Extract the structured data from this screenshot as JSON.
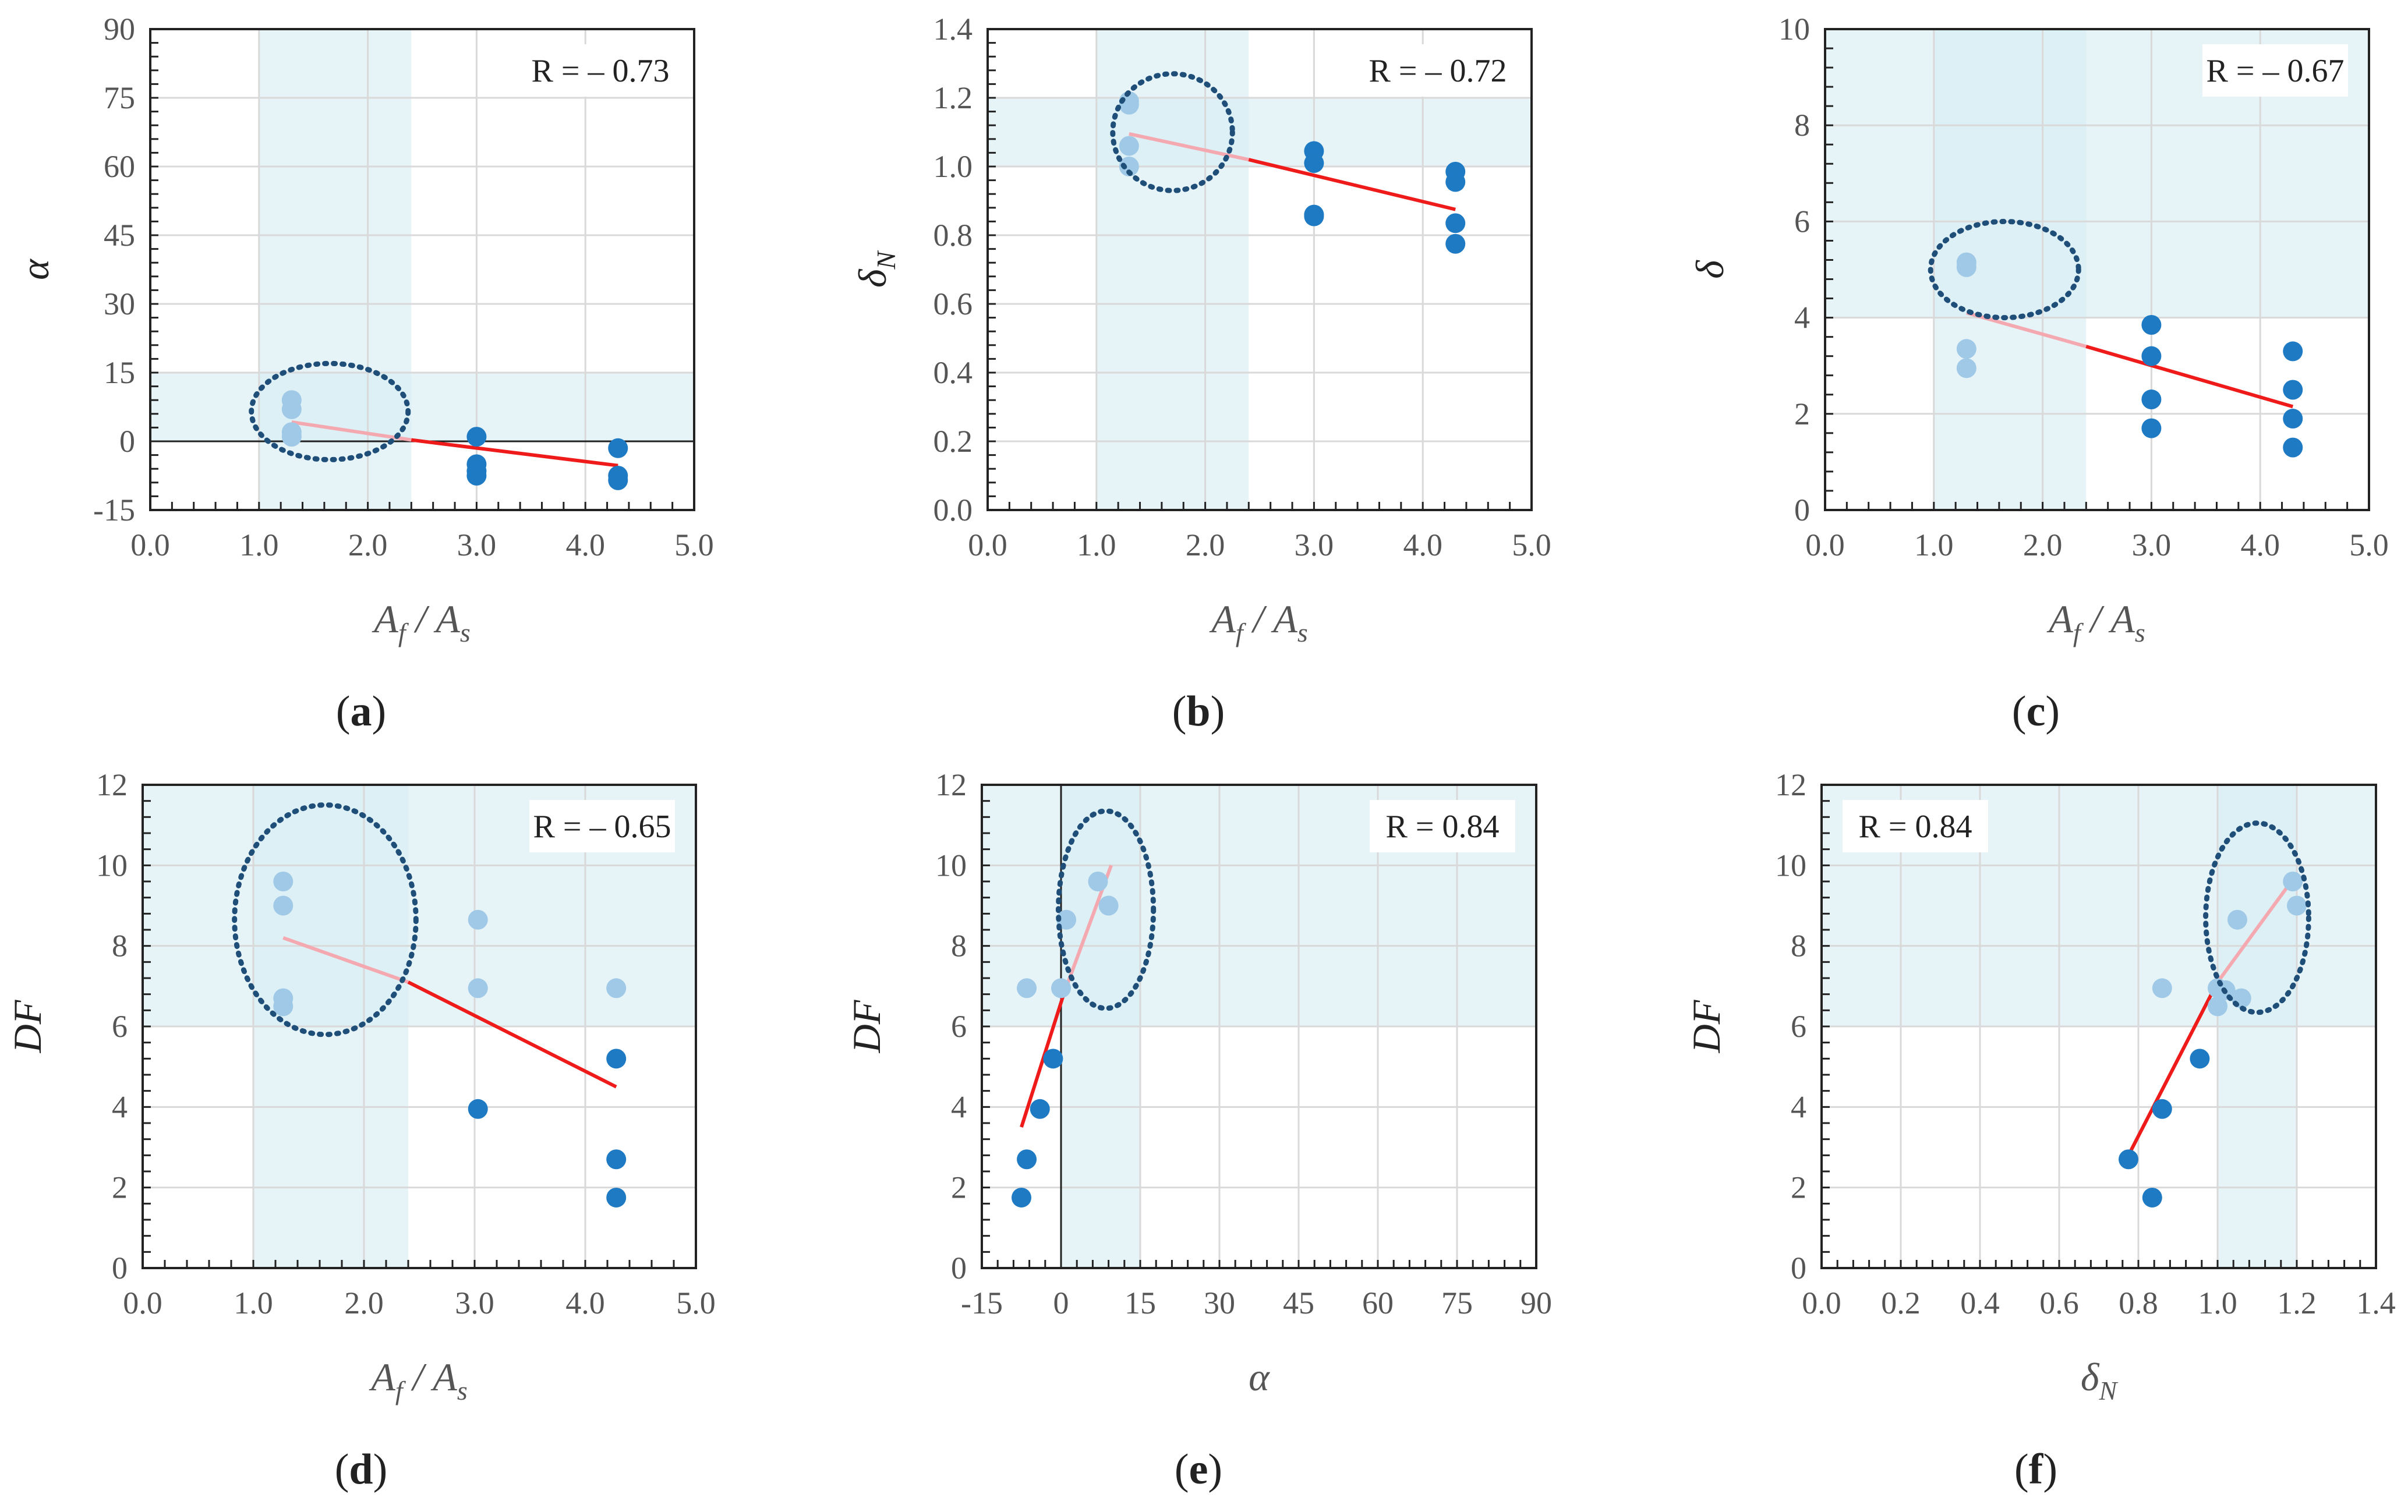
{
  "colors": {
    "dark_point": "#1f7ac4",
    "light_point": "#9fc9e6",
    "fit_dark": "#ef1a1a",
    "fit_light": "#f4a9b0",
    "shade": "#d6edf4",
    "grid": "#d9d9d9",
    "ellipse": "#1f4e79"
  },
  "chart_data": [
    {
      "id": "a",
      "caption": "a",
      "type": "scatter",
      "xlabel_main": "A",
      "xlabel_sub1": "f",
      "xlabel_mid": " / A",
      "xlabel_sub2": "s",
      "ylabel_main": "α",
      "ylabel_sub": "",
      "r_label": "R = – 0.73",
      "xlim": [
        0,
        5
      ],
      "ylim": [
        -15,
        90
      ],
      "xticks": [
        "0.0",
        "1.0",
        "2.0",
        "3.0",
        "4.0",
        "5.0"
      ],
      "xtick_values": [
        0,
        1,
        2,
        3,
        4,
        5
      ],
      "yticks": [
        "-15",
        "0",
        "15",
        "30",
        "45",
        "60",
        "75",
        "90"
      ],
      "ytick_values": [
        -15,
        0,
        15,
        30,
        45,
        60,
        75,
        90
      ],
      "shade_x": [
        1.0,
        2.4
      ],
      "shade_y": [
        0,
        15
      ],
      "zero_axis": "y",
      "ellipse": {
        "cx": 1.65,
        "cy": 6.5,
        "rx": 0.72,
        "ry": 10.5
      },
      "points_light": [
        [
          1.3,
          9
        ],
        [
          1.3,
          7
        ],
        [
          1.3,
          2
        ],
        [
          1.3,
          1
        ]
      ],
      "points_dark": [
        [
          3.0,
          1
        ],
        [
          3.0,
          -5
        ],
        [
          3.0,
          -6.5
        ],
        [
          3.0,
          -7.5
        ],
        [
          4.3,
          -1.5
        ],
        [
          4.3,
          -7.5
        ],
        [
          4.3,
          -8.5
        ]
      ],
      "fit_light": [
        [
          1.3,
          4.2
        ],
        [
          2.4,
          0.3
        ]
      ],
      "fit_dark": [
        [
          2.4,
          0.3
        ],
        [
          4.3,
          -5.3
        ]
      ]
    },
    {
      "id": "b",
      "caption": "b",
      "type": "scatter",
      "xlabel_main": "A",
      "xlabel_sub1": "f",
      "xlabel_mid": " / A",
      "xlabel_sub2": "s",
      "ylabel_main": "δ",
      "ylabel_sub": "N",
      "r_label": "R = – 0.72",
      "xlim": [
        0,
        5
      ],
      "ylim": [
        0,
        1.4
      ],
      "xticks": [
        "0.0",
        "1.0",
        "2.0",
        "3.0",
        "4.0",
        "5.0"
      ],
      "xtick_values": [
        0,
        1,
        2,
        3,
        4,
        5
      ],
      "yticks": [
        "0.0",
        "0.2",
        "0.4",
        "0.6",
        "0.8",
        "1.0",
        "1.2",
        "1.4"
      ],
      "ytick_values": [
        0,
        0.2,
        0.4,
        0.6,
        0.8,
        1.0,
        1.2,
        1.4
      ],
      "shade_x": [
        1.0,
        2.4
      ],
      "shade_y": [
        1.0,
        1.2
      ],
      "zero_axis": "none",
      "ellipse": {
        "cx": 1.7,
        "cy": 1.1,
        "rx": 0.55,
        "ry": 0.17
      },
      "points_light": [
        [
          1.3,
          1.19
        ],
        [
          1.3,
          1.18
        ],
        [
          1.3,
          1.06
        ],
        [
          1.3,
          1.0
        ]
      ],
      "points_dark": [
        [
          3.0,
          1.045
        ],
        [
          3.0,
          1.01
        ],
        [
          3.0,
          0.86
        ],
        [
          3.0,
          0.855
        ],
        [
          4.3,
          0.985
        ],
        [
          4.3,
          0.955
        ],
        [
          4.3,
          0.835
        ],
        [
          4.3,
          0.775
        ]
      ],
      "fit_light": [
        [
          1.3,
          1.095
        ],
        [
          2.4,
          1.02
        ]
      ],
      "fit_dark": [
        [
          2.4,
          1.02
        ],
        [
          4.3,
          0.875
        ]
      ]
    },
    {
      "id": "c",
      "caption": "c",
      "type": "scatter",
      "xlabel_main": "A",
      "xlabel_sub1": "f",
      "xlabel_mid": " / A",
      "xlabel_sub2": "s",
      "ylabel_main": "δ",
      "ylabel_sub": "",
      "r_label": "R = – 0.67",
      "xlim": [
        0,
        5
      ],
      "ylim": [
        0,
        10
      ],
      "xticks": [
        "0.0",
        "1.0",
        "2.0",
        "3.0",
        "4.0",
        "5.0"
      ],
      "xtick_values": [
        0,
        1,
        2,
        3,
        4,
        5
      ],
      "yticks": [
        "0",
        "2",
        "4",
        "6",
        "8",
        "10"
      ],
      "ytick_values": [
        0,
        2,
        4,
        6,
        8,
        10
      ],
      "shade_x": [
        1.0,
        2.4
      ],
      "shade_y": [
        4,
        10
      ],
      "zero_axis": "none",
      "ellipse": {
        "cx": 1.65,
        "cy": 5.0,
        "rx": 0.68,
        "ry": 1.0
      },
      "points_light": [
        [
          1.3,
          5.15
        ],
        [
          1.3,
          5.05
        ],
        [
          1.3,
          3.35
        ],
        [
          1.3,
          2.95
        ]
      ],
      "points_dark": [
        [
          3.0,
          3.85
        ],
        [
          3.0,
          3.2
        ],
        [
          3.0,
          2.3
        ],
        [
          3.0,
          1.7
        ],
        [
          4.3,
          3.3
        ],
        [
          4.3,
          2.5
        ],
        [
          4.3,
          1.9
        ],
        [
          4.3,
          1.3
        ]
      ],
      "fit_light": [
        [
          1.3,
          4.1
        ],
        [
          2.4,
          3.4
        ]
      ],
      "fit_dark": [
        [
          2.4,
          3.4
        ],
        [
          4.3,
          2.15
        ]
      ]
    },
    {
      "id": "d",
      "caption": "d",
      "type": "scatter",
      "xlabel_main": "A",
      "xlabel_sub1": "f",
      "xlabel_mid": " / A",
      "xlabel_sub2": "s",
      "ylabel_main": "DF",
      "ylabel_sub": "",
      "r_label": "R = – 0.65",
      "xlim": [
        0,
        5
      ],
      "ylim": [
        0,
        12
      ],
      "xticks": [
        "0.0",
        "1.0",
        "2.0",
        "3.0",
        "4.0",
        "5.0"
      ],
      "xtick_values": [
        0,
        1,
        2,
        3,
        4,
        5
      ],
      "yticks": [
        "0",
        "2",
        "4",
        "6",
        "8",
        "10",
        "12"
      ],
      "ytick_values": [
        0,
        2,
        4,
        6,
        8,
        10,
        12
      ],
      "shade_x": [
        1.0,
        2.4
      ],
      "shade_y": [
        6,
        12
      ],
      "zero_axis": "none",
      "ellipse": {
        "cx": 1.65,
        "cy": 8.65,
        "rx": 0.82,
        "ry": 2.85
      },
      "points_light": [
        [
          1.27,
          9.6
        ],
        [
          1.27,
          9.0
        ],
        [
          1.27,
          6.7
        ],
        [
          1.27,
          6.5
        ],
        [
          3.03,
          8.65
        ],
        [
          3.03,
          6.95
        ],
        [
          4.28,
          6.95
        ]
      ],
      "points_dark": [
        [
          3.03,
          3.95
        ],
        [
          4.28,
          5.2
        ],
        [
          4.28,
          2.7
        ],
        [
          4.28,
          1.75
        ]
      ],
      "fit_light": [
        [
          1.27,
          8.2
        ],
        [
          2.4,
          7.1
        ]
      ],
      "fit_dark": [
        [
          2.4,
          7.1
        ],
        [
          4.28,
          4.5
        ]
      ]
    },
    {
      "id": "e",
      "caption": "e",
      "type": "scatter",
      "xlabel_main": "α",
      "xlabel_sub1": "",
      "xlabel_mid": "",
      "xlabel_sub2": "",
      "ylabel_main": "DF",
      "ylabel_sub": "",
      "r_label": "R = 0.84",
      "xlim": [
        -15,
        90
      ],
      "ylim": [
        0,
        12
      ],
      "xticks": [
        "-15",
        "0",
        "15",
        "30",
        "45",
        "60",
        "75",
        "90"
      ],
      "xtick_values": [
        -15,
        0,
        15,
        30,
        45,
        60,
        75,
        90
      ],
      "yticks": [
        "0",
        "2",
        "4",
        "6",
        "8",
        "10",
        "12"
      ],
      "ytick_values": [
        0,
        2,
        4,
        6,
        8,
        10,
        12
      ],
      "shade_x": [
        0,
        15
      ],
      "shade_y": [
        6,
        12
      ],
      "zero_axis": "x",
      "ellipse": {
        "cx": 8.5,
        "cy": 8.9,
        "rx": 9.0,
        "ry": 2.45
      },
      "points_light": [
        [
          7.0,
          9.6
        ],
        [
          9.0,
          9.0
        ],
        [
          1.0,
          8.65
        ],
        [
          -6.5,
          6.95
        ],
        [
          0,
          6.95
        ]
      ],
      "points_dark": [
        [
          -1.5,
          5.2
        ],
        [
          -4.0,
          3.95
        ],
        [
          -6.5,
          2.7
        ],
        [
          -7.5,
          1.75
        ]
      ],
      "fit_light": [
        [
          0.5,
          6.8
        ],
        [
          9.5,
          10.0
        ]
      ],
      "fit_dark": [
        [
          -7.5,
          3.5
        ],
        [
          0.5,
          6.8
        ]
      ]
    },
    {
      "id": "f",
      "caption": "f",
      "type": "scatter",
      "xlabel_main": "δ",
      "xlabel_sub1": "",
      "xlabel_mid": "",
      "xlabel_sub2": "N",
      "ylabel_main": "DF",
      "ylabel_sub": "",
      "r_label": "R = 0.84",
      "xlim": [
        0,
        1.4
      ],
      "ylim": [
        0,
        12
      ],
      "xticks": [
        "0.0",
        "0.2",
        "0.4",
        "0.6",
        "0.8",
        "1.0",
        "1.2",
        "1.4"
      ],
      "xtick_values": [
        0,
        0.2,
        0.4,
        0.6,
        0.8,
        1.0,
        1.2,
        1.4
      ],
      "yticks": [
        "0",
        "2",
        "4",
        "6",
        "8",
        "10",
        "12"
      ],
      "ytick_values": [
        0,
        2,
        4,
        6,
        8,
        10,
        12
      ],
      "shade_x": [
        1.0,
        1.2
      ],
      "shade_y": [
        6,
        12
      ],
      "zero_axis": "none",
      "ellipse": {
        "cx": 1.1,
        "cy": 8.7,
        "rx": 0.13,
        "ry": 2.35
      },
      "points_light": [
        [
          1.19,
          9.6
        ],
        [
          1.2,
          9.0
        ],
        [
          1.05,
          8.65
        ],
        [
          0.86,
          6.95
        ],
        [
          1.0,
          6.95
        ],
        [
          1.02,
          6.9
        ],
        [
          1.06,
          6.7
        ],
        [
          1.0,
          6.5
        ]
      ],
      "points_dark": [
        [
          0.955,
          5.2
        ],
        [
          0.86,
          3.95
        ],
        [
          0.775,
          2.7
        ],
        [
          0.835,
          1.75
        ]
      ],
      "fit_light": [
        [
          1.0,
          7.1
        ],
        [
          1.19,
          9.65
        ]
      ],
      "fit_dark": [
        [
          0.775,
          2.8
        ],
        [
          1.0,
          7.1
        ]
      ]
    }
  ]
}
